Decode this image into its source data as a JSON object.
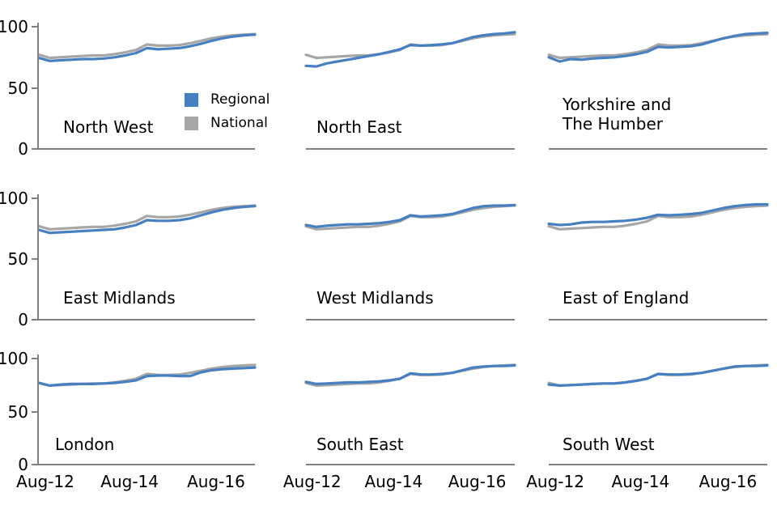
{
  "chart_data": {
    "type": "line",
    "layout": "3x3 small multiples",
    "ylim": [
      0,
      100
    ],
    "grid": false,
    "y_tick_labels": [
      "100",
      "50",
      "0"
    ],
    "x_tick_labels": [
      "Aug-12",
      "Aug-14",
      "Aug-16"
    ],
    "legend_position": "inside first panel",
    "series_meta": [
      {
        "name": "Regional",
        "color": "#4680C2"
      },
      {
        "name": "National",
        "color": "#A6A6A6"
      }
    ],
    "national_values": [
      77,
      74.5,
      75,
      75.5,
      76,
      76.5,
      76.5,
      77.5,
      79,
      81,
      85.5,
      84.5,
      84.5,
      85,
      86.5,
      88.5,
      90.5,
      92,
      93,
      93.5,
      94
    ],
    "charts": [
      {
        "title": "North West",
        "regional_values": [
          74.5,
          72,
          72.5,
          73,
          73.5,
          73.5,
          74,
          75,
          76.5,
          78.5,
          82.5,
          81.5,
          82,
          82.5,
          84,
          86,
          88.5,
          90.5,
          92,
          93,
          93.5
        ]
      },
      {
        "title": "North East",
        "regional_values": [
          68,
          67.5,
          70,
          71.5,
          73,
          74.5,
          76,
          77.5,
          79.5,
          81.5,
          85,
          84.5,
          85,
          85.5,
          86.5,
          89,
          91.5,
          93,
          94,
          94.5,
          95.5
        ]
      },
      {
        "title": "Yorkshire and\nThe Humber",
        "regional_values": [
          75,
          71.5,
          73.5,
          73,
          74,
          74.5,
          75,
          76,
          77.5,
          79.5,
          83.5,
          83,
          83.5,
          84,
          85.5,
          88,
          90.5,
          92.5,
          94,
          94.5,
          95
        ]
      },
      {
        "title": "East Midlands",
        "regional_values": [
          74,
          71.5,
          72,
          72.5,
          73,
          73.5,
          74,
          74.5,
          76,
          78,
          82,
          81.5,
          81.5,
          82,
          83.5,
          86,
          88.5,
          90.5,
          92,
          93,
          93.5
        ]
      },
      {
        "title": "West Midlands",
        "regional_values": [
          78,
          76.5,
          77.5,
          78,
          78.5,
          78.5,
          79,
          79.5,
          80.5,
          82,
          86,
          85,
          85.5,
          86,
          87,
          89.5,
          92,
          93.5,
          94,
          94,
          94.5
        ]
      },
      {
        "title": "East of England",
        "regional_values": [
          79,
          78,
          78.5,
          80,
          80.5,
          80.5,
          81,
          81.5,
          82.5,
          84,
          86.5,
          86,
          86.5,
          87,
          88,
          90,
          92,
          93.5,
          94.5,
          95,
          95
        ]
      },
      {
        "title": "London",
        "regional_values": [
          77,
          74.5,
          75.5,
          76,
          76,
          76,
          76.5,
          77,
          78,
          79.5,
          83.5,
          84,
          84,
          83.5,
          83.5,
          87,
          89,
          90,
          90.5,
          91,
          91.5
        ]
      },
      {
        "title": "South East",
        "regional_values": [
          78,
          76,
          76.5,
          77,
          77.5,
          77.5,
          78,
          78.5,
          79.5,
          81,
          86,
          85,
          85,
          85.5,
          86.5,
          89,
          91.5,
          92.5,
          93,
          93,
          93.5
        ]
      },
      {
        "title": "South West",
        "regional_values": [
          75.5,
          74.5,
          75,
          75.5,
          76,
          76.5,
          76.5,
          77.5,
          79,
          81,
          85.5,
          85,
          85,
          85.5,
          86.5,
          88.5,
          90.5,
          92.5,
          93,
          93,
          93.5
        ]
      }
    ]
  },
  "colors": {
    "axis": "#808080",
    "text": "#000000"
  }
}
